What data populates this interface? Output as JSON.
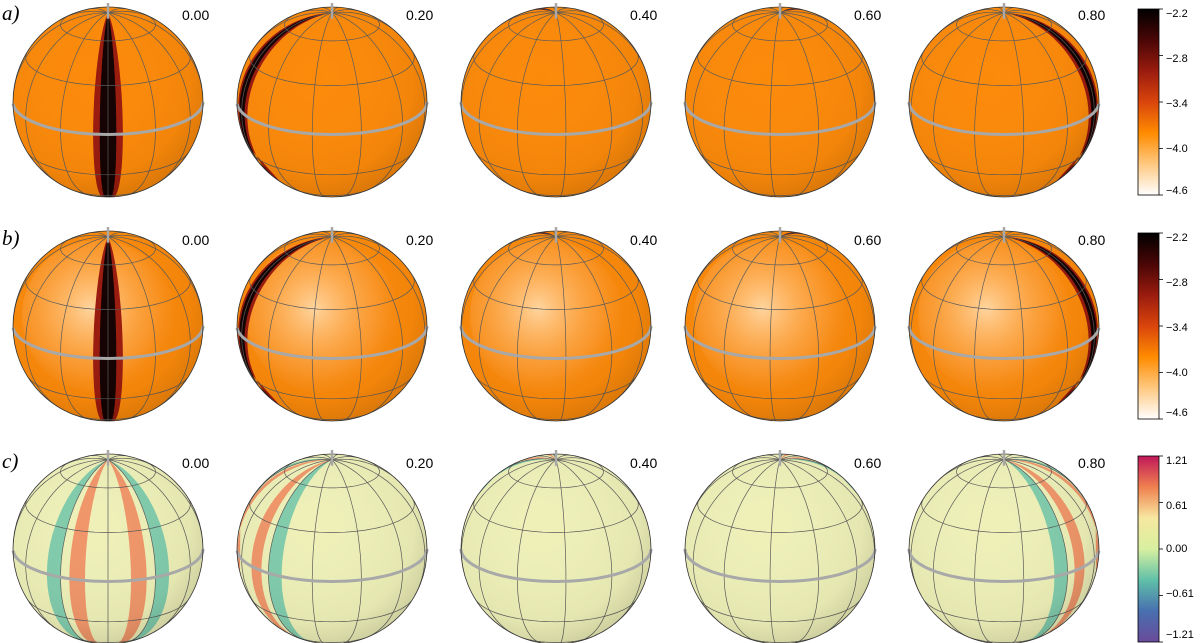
{
  "panels": [
    {
      "label": "a)",
      "colormap": "heat",
      "colorbar_ticks": [
        "−2.2",
        "−2.8",
        "−3.4",
        "−4.0",
        "−4.6"
      ],
      "phases": [
        {
          "phase": "0.00",
          "spot_longitude": 0
        },
        {
          "phase": "0.20",
          "spot_longitude": -72
        },
        {
          "phase": "0.40",
          "spot_longitude": -144
        },
        {
          "phase": "0.60",
          "spot_longitude": -216
        },
        {
          "phase": "0.80",
          "spot_longitude": -288
        }
      ]
    },
    {
      "label": "b)",
      "colormap": "heat",
      "colorbar_ticks": [
        "−2.2",
        "−2.8",
        "−3.4",
        "−4.0",
        "−4.6"
      ],
      "phases": [
        {
          "phase": "0.00",
          "spot_longitude": 0
        },
        {
          "phase": "0.20",
          "spot_longitude": -72
        },
        {
          "phase": "0.40",
          "spot_longitude": -144
        },
        {
          "phase": "0.60",
          "spot_longitude": -216
        },
        {
          "phase": "0.80",
          "spot_longitude": -288
        }
      ]
    },
    {
      "label": "c)",
      "colormap": "diverging",
      "colorbar_ticks": [
        "1.21",
        "0.61",
        "0.00",
        "−0.61",
        "−1.21"
      ],
      "phases": [
        {
          "phase": "0.00",
          "spot_longitude": 0
        },
        {
          "phase": "0.20",
          "spot_longitude": -72
        },
        {
          "phase": "0.40",
          "spot_longitude": -144
        },
        {
          "phase": "0.60",
          "spot_longitude": -216
        },
        {
          "phase": "0.80",
          "spot_longitude": -288
        }
      ]
    }
  ],
  "colors": {
    "heat": [
      "#000000",
      "#4a0606",
      "#9a1b0e",
      "#d9450c",
      "#ff8c00",
      "#ffc880",
      "#ffffff"
    ],
    "diverging": [
      "#c0185a",
      "#f08050",
      "#f7e8a0",
      "#d8f0a0",
      "#60c0a8",
      "#4870b0",
      "#6a4a9a"
    ],
    "heat_base": "#fc8a0a",
    "diverging_base": "#eef0b8",
    "grid": "#5a5a5a",
    "equator": "#a8a8a8"
  }
}
